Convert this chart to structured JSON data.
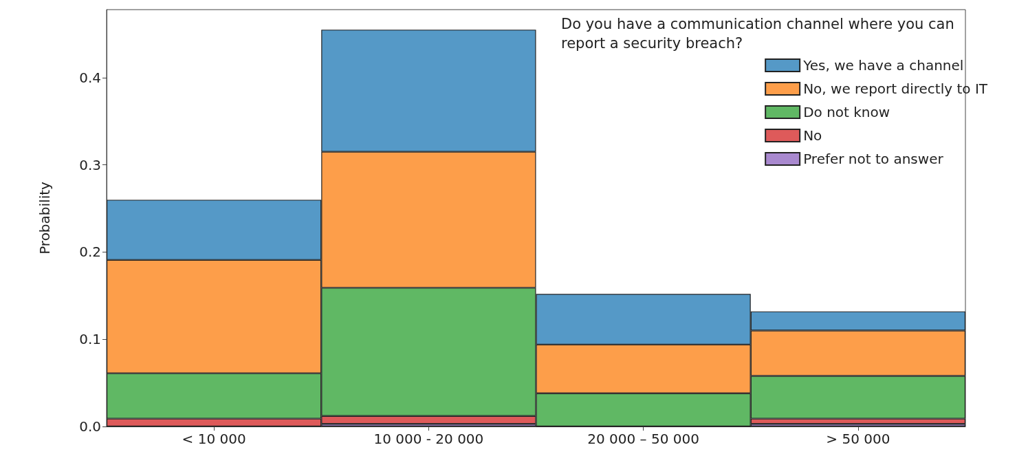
{
  "chart_data": {
    "type": "bar",
    "stacked": true,
    "ylabel": "Probability",
    "legend_title": "Do you have a communication channel where you can report a security breach?",
    "categories": [
      "< 10 000",
      "10 000 - 20 000",
      "20 000 – 50 000",
      "> 50 000"
    ],
    "series": [
      {
        "name": "Prefer not to answer",
        "color": "#a989cf",
        "values": [
          0,
          0.003,
          0,
          0.003
        ]
      },
      {
        "name": "No",
        "color": "#de5a5a",
        "values": [
          0.009,
          0.009,
          0,
          0.006
        ]
      },
      {
        "name": "Do not know",
        "color": "#60b864",
        "values": [
          0.052,
          0.147,
          0.038,
          0.049
        ]
      },
      {
        "name": "No, we report directly to IT",
        "color": "#fd9e4a",
        "values": [
          0.13,
          0.156,
          0.056,
          0.052
        ]
      },
      {
        "name": "Yes, we have a channel",
        "color": "#5599c7",
        "values": [
          0.069,
          0.14,
          0.058,
          0.022
        ]
      }
    ],
    "ylim": [
      0,
      0.478
    ],
    "yticks": [
      {
        "value": 0,
        "label": "0.0"
      },
      0.1,
      0.2,
      0.3,
      0.4
    ],
    "grid": false,
    "legend": "top right"
  }
}
